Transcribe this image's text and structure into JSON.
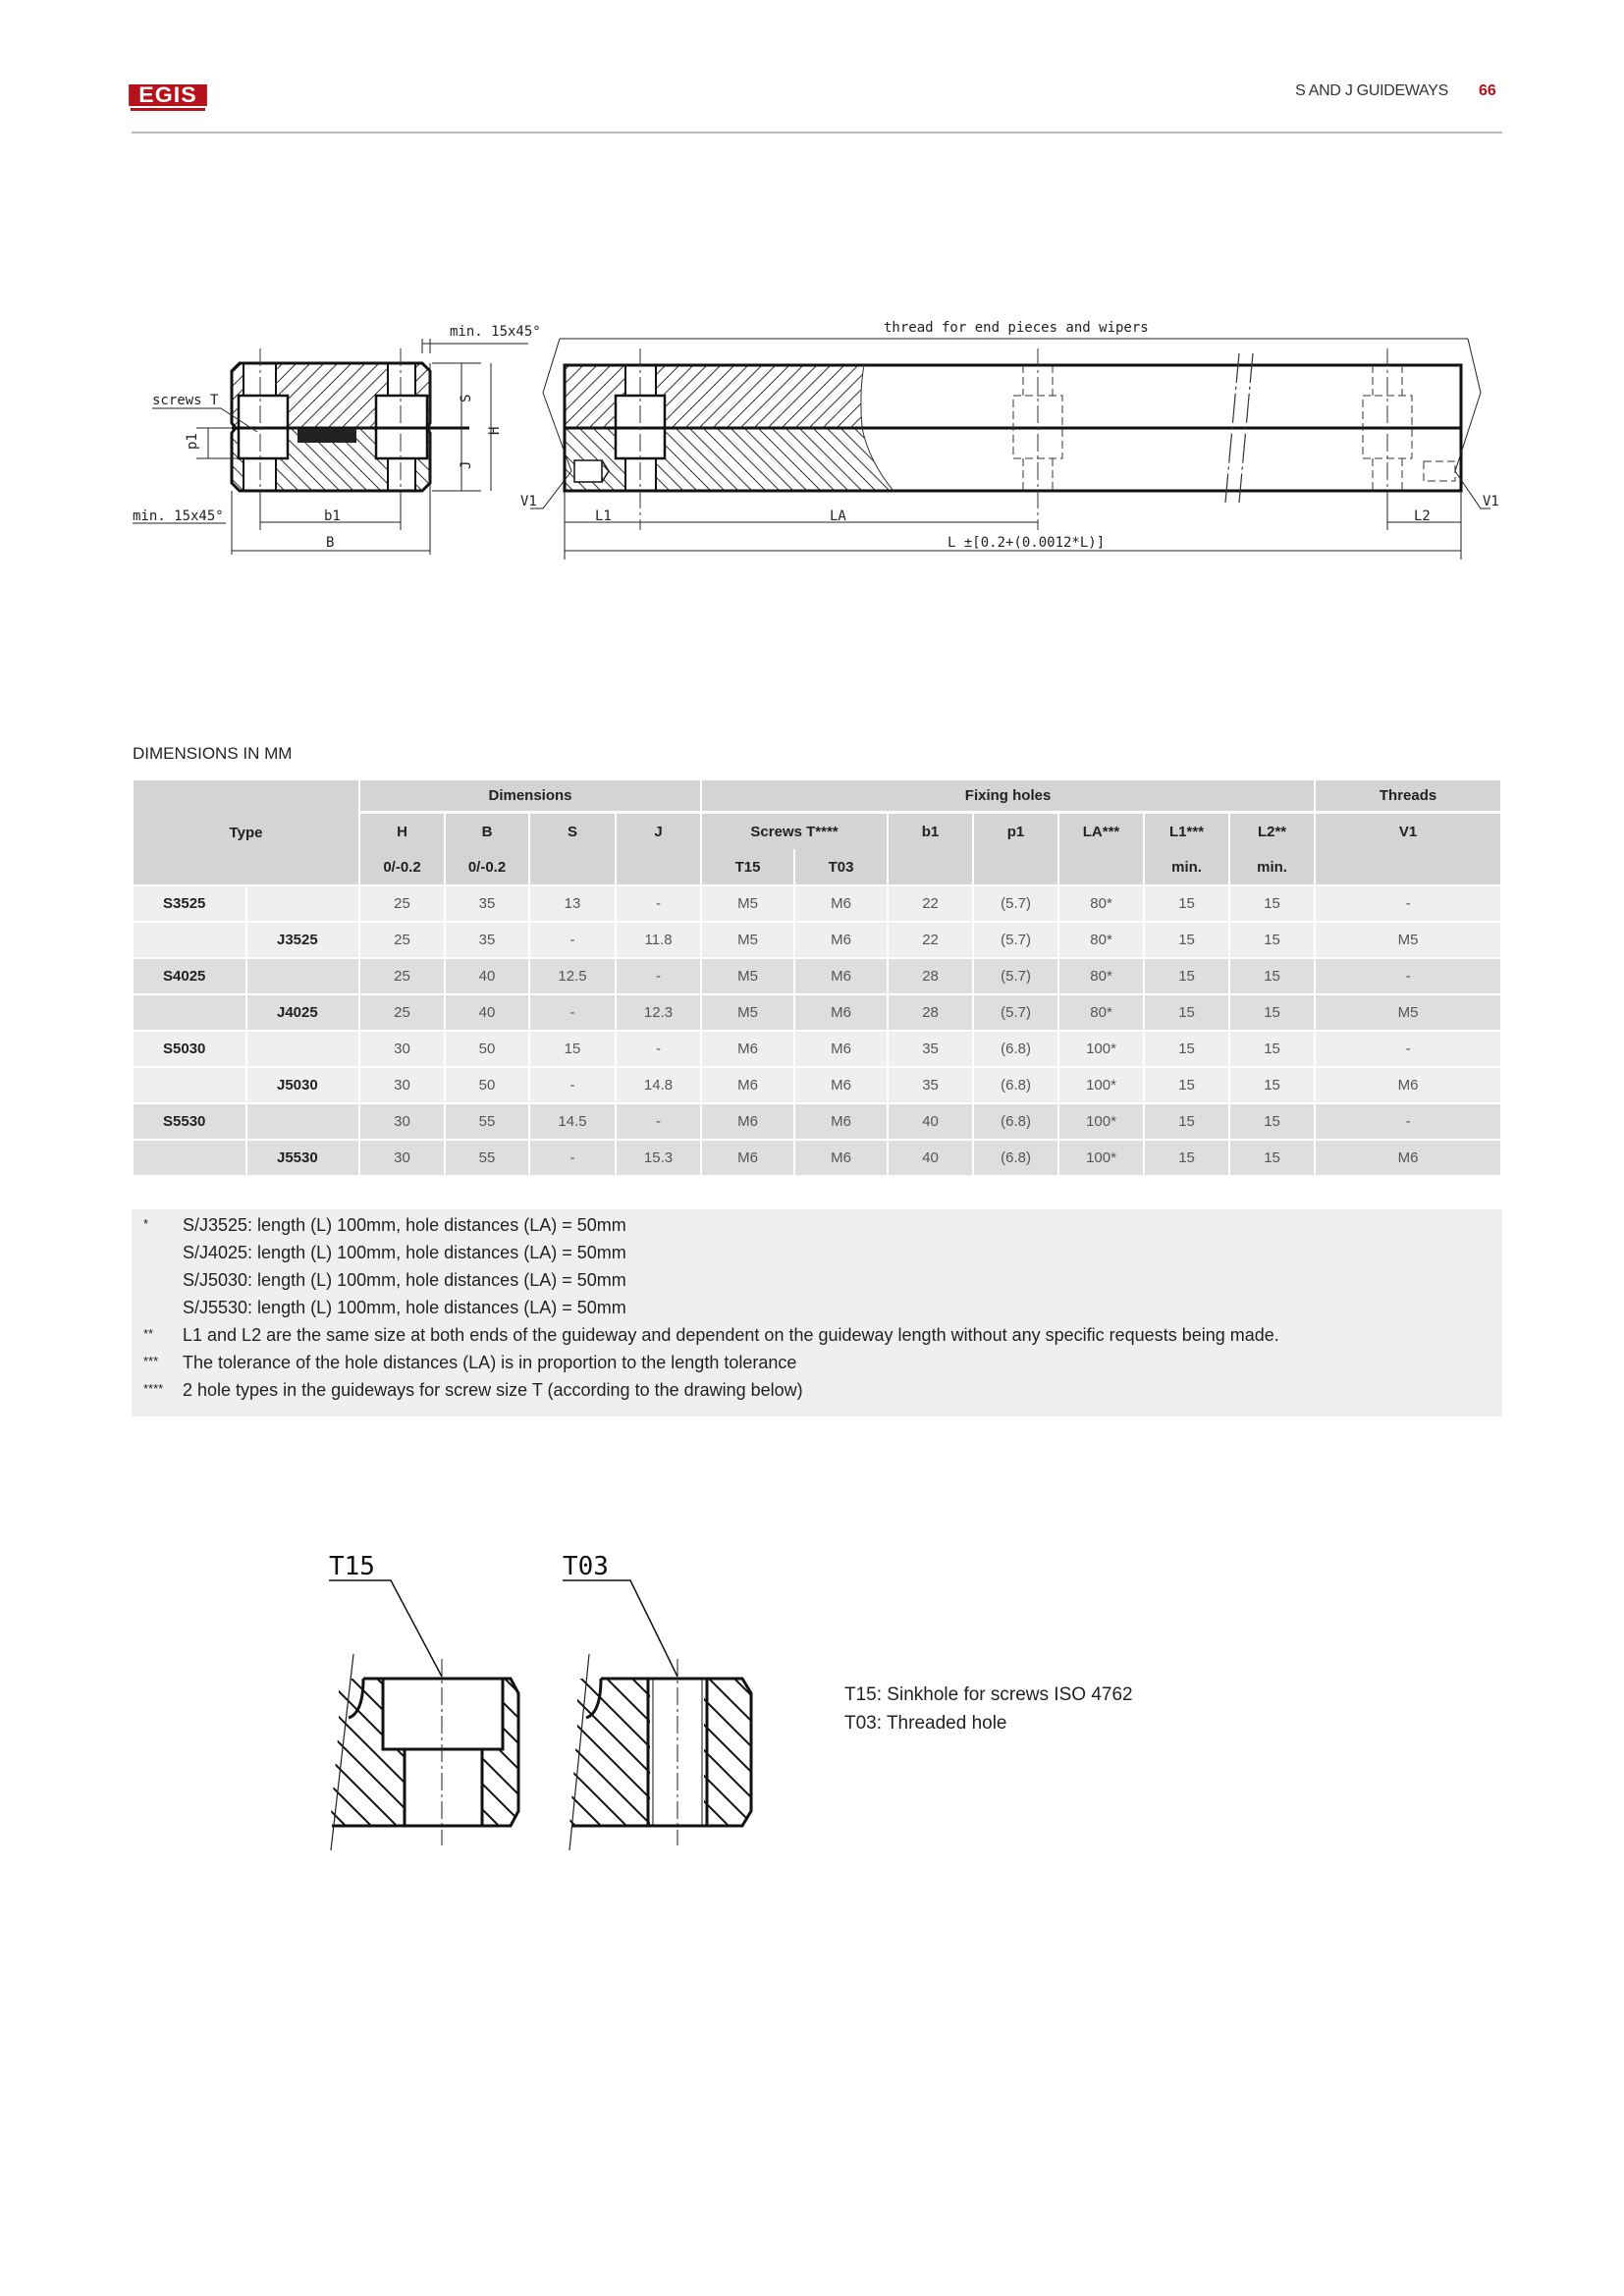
{
  "header": {
    "logo_text": "EGIS",
    "section_title": "S AND J GUIDEWAYS",
    "page_number": "66",
    "brand_color": "#b5121b"
  },
  "drawing": {
    "labels": {
      "chamfer_top": "min. 15x45°",
      "chamfer_bottom": "min. 15x45°",
      "screws": "screws T",
      "p1": "p1",
      "s": "S",
      "h": "H",
      "j": "J",
      "b1": "b1",
      "b": "B",
      "thread_note": "thread for end pieces and wipers",
      "v1_left": "V1",
      "v1_right": "V1",
      "l1": "L1",
      "la": "LA",
      "l2": "L2",
      "l": "L ±[0.2+(0.0012*L)]"
    }
  },
  "dimensions_title": "DIMENSIONS  IN MM",
  "table": {
    "groups": {
      "type": "Type",
      "dimensions": "Dimensions",
      "fixing_holes": "Fixing holes",
      "threads": "Threads"
    },
    "cols": {
      "h": "H",
      "b": "B",
      "s": "S",
      "j": "J",
      "screws": "Screws  T****",
      "b1": "b1",
      "p1": "p1",
      "la": "LA***",
      "l1": "L1***",
      "l2": "L2**",
      "v1": "V1"
    },
    "sub": {
      "h": "0/-0.2",
      "b": "0/-0.2",
      "t15": "T15",
      "t03": "T03",
      "l1": "min.",
      "l2": "min."
    },
    "rows": [
      {
        "s_type": "S3525",
        "j_type": "",
        "H": "25",
        "B": "35",
        "S": "13",
        "J": "-",
        "T15": "M5",
        "T03": "M6",
        "b1": "22",
        "p1": "(5.7)",
        "LA": "80*",
        "L1": "15",
        "L2": "15",
        "V1": "-"
      },
      {
        "s_type": "",
        "j_type": "J3525",
        "H": "25",
        "B": "35",
        "S": "-",
        "J": "11.8",
        "T15": "M5",
        "T03": "M6",
        "b1": "22",
        "p1": "(5.7)",
        "LA": "80*",
        "L1": "15",
        "L2": "15",
        "V1": "M5"
      },
      {
        "s_type": "S4025",
        "j_type": "",
        "H": "25",
        "B": "40",
        "S": "12.5",
        "J": "-",
        "T15": "M5",
        "T03": "M6",
        "b1": "28",
        "p1": "(5.7)",
        "LA": "80*",
        "L1": "15",
        "L2": "15",
        "V1": "-"
      },
      {
        "s_type": "",
        "j_type": "J4025",
        "H": "25",
        "B": "40",
        "S": "-",
        "J": "12.3",
        "T15": "M5",
        "T03": "M6",
        "b1": "28",
        "p1": "(5.7)",
        "LA": "80*",
        "L1": "15",
        "L2": "15",
        "V1": "M5"
      },
      {
        "s_type": "S5030",
        "j_type": "",
        "H": "30",
        "B": "50",
        "S": "15",
        "J": "-",
        "T15": "M6",
        "T03": "M6",
        "b1": "35",
        "p1": "(6.8)",
        "LA": "100*",
        "L1": "15",
        "L2": "15",
        "V1": "-"
      },
      {
        "s_type": "",
        "j_type": "J5030",
        "H": "30",
        "B": "50",
        "S": "-",
        "J": "14.8",
        "T15": "M6",
        "T03": "M6",
        "b1": "35",
        "p1": "(6.8)",
        "LA": "100*",
        "L1": "15",
        "L2": "15",
        "V1": "M6"
      },
      {
        "s_type": "S5530",
        "j_type": "",
        "H": "30",
        "B": "55",
        "S": "14.5",
        "J": "-",
        "T15": "M6",
        "T03": "M6",
        "b1": "40",
        "p1": "(6.8)",
        "LA": "100*",
        "L1": "15",
        "L2": "15",
        "V1": "-"
      },
      {
        "s_type": "",
        "j_type": "J5530",
        "H": "30",
        "B": "55",
        "S": "-",
        "J": "15.3",
        "T15": "M6",
        "T03": "M6",
        "b1": "40",
        "p1": "(6.8)",
        "LA": "100*",
        "L1": "15",
        "L2": "15",
        "V1": "M6"
      }
    ]
  },
  "notes": [
    {
      "marker": "*",
      "text": "S/J3525: length (L) 100mm, hole distances (LA) = 50mm"
    },
    {
      "marker": "",
      "text": "S/J4025: length (L) 100mm, hole distances (LA) = 50mm"
    },
    {
      "marker": "",
      "text": "S/J5030: length (L) 100mm, hole distances (LA) = 50mm"
    },
    {
      "marker": "",
      "text": "S/J5530: length (L) 100mm, hole distances (LA) = 50mm"
    },
    {
      "marker": "**",
      "text": "L1 and L2 are the same size at both ends of the guideway and dependent on the guideway length without any specific requests being made."
    },
    {
      "marker": "***",
      "text": "The tolerance of the hole distances (LA) is in proportion to the length tolerance"
    },
    {
      "marker": "****",
      "text": "2 hole types in the guideways for screw size T (according to the drawing below)"
    }
  ],
  "hole_types": {
    "t15_label": "T15",
    "t03_label": "T03",
    "t15_desc": "T15: Sinkhole for screws ISO 4762",
    "t03_desc": "T03: Threaded hole"
  }
}
